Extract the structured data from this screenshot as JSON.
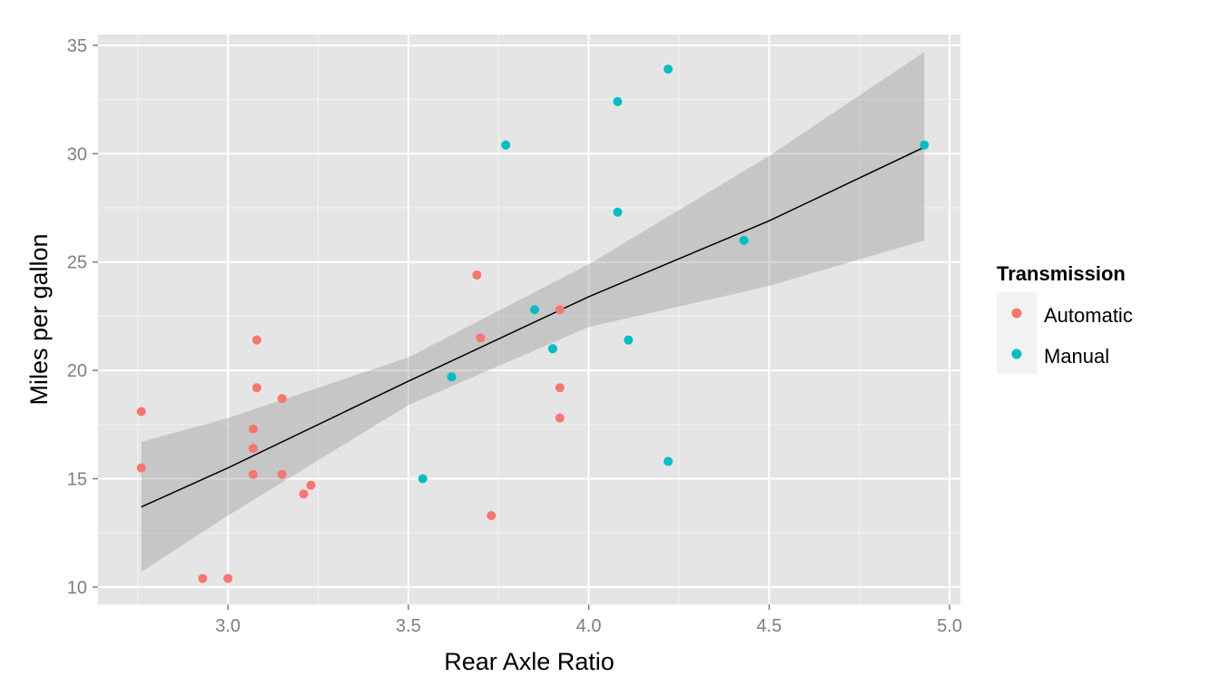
{
  "chart_data": {
    "type": "scatter",
    "title": "",
    "xlabel": "Rear Axle Ratio",
    "ylabel": "Miles per gallon",
    "xlim": [
      2.64,
      5.03
    ],
    "ylim": [
      9.2,
      35.5
    ],
    "x_ticks": [
      3.0,
      3.5,
      4.0,
      4.5,
      5.0
    ],
    "x_tick_labels": [
      "3.0",
      "3.5",
      "4.0",
      "4.5",
      "5.0"
    ],
    "y_ticks": [
      10,
      15,
      20,
      25,
      30,
      35
    ],
    "y_tick_labels": [
      "10",
      "15",
      "20",
      "25",
      "30",
      "35"
    ],
    "grid": true,
    "legend": {
      "title": "Transmission",
      "placement": "right",
      "entries": [
        "Automatic",
        "Manual"
      ]
    },
    "series": [
      {
        "name": "Automatic",
        "color": "#F8766D",
        "points": [
          [
            3.08,
            21.4
          ],
          [
            3.15,
            18.7
          ],
          [
            2.76,
            18.1
          ],
          [
            3.21,
            14.3
          ],
          [
            3.69,
            24.4
          ],
          [
            3.92,
            22.8
          ],
          [
            3.92,
            19.2
          ],
          [
            3.92,
            17.8
          ],
          [
            3.07,
            16.4
          ],
          [
            3.07,
            17.3
          ],
          [
            3.07,
            15.2
          ],
          [
            2.93,
            10.4
          ],
          [
            3.0,
            10.4
          ],
          [
            3.23,
            14.7
          ],
          [
            3.7,
            21.5
          ],
          [
            2.76,
            15.5
          ],
          [
            3.15,
            15.2
          ],
          [
            3.73,
            13.3
          ],
          [
            3.08,
            19.2
          ]
        ]
      },
      {
        "name": "Manual",
        "color": "#00BFC4",
        "points": [
          [
            3.9,
            21.0
          ],
          [
            3.9,
            21.0
          ],
          [
            3.85,
            22.8
          ],
          [
            4.08,
            32.4
          ],
          [
            4.93,
            30.4
          ],
          [
            4.22,
            33.9
          ],
          [
            4.08,
            27.3
          ],
          [
            4.43,
            26.0
          ],
          [
            3.77,
            30.4
          ],
          [
            4.22,
            15.8
          ],
          [
            3.62,
            19.7
          ],
          [
            3.54,
            15.0
          ],
          [
            4.11,
            21.4
          ]
        ]
      }
    ],
    "fit": {
      "method": "lm",
      "x_range": [
        2.76,
        4.93
      ],
      "line_color": "#000000",
      "band_color": "#999999",
      "points": [
        [
          2.76,
          13.7
        ],
        [
          3.0,
          15.5
        ],
        [
          3.5,
          19.5
        ],
        [
          4.0,
          23.4
        ],
        [
          4.5,
          26.9
        ],
        [
          4.93,
          30.3
        ]
      ],
      "band": [
        [
          2.76,
          10.7,
          16.7
        ],
        [
          3.0,
          13.3,
          17.8
        ],
        [
          3.5,
          18.4,
          20.6
        ],
        [
          4.0,
          22.0,
          24.9
        ],
        [
          4.5,
          23.9,
          29.9
        ],
        [
          4.93,
          26.0,
          34.7
        ]
      ]
    }
  }
}
